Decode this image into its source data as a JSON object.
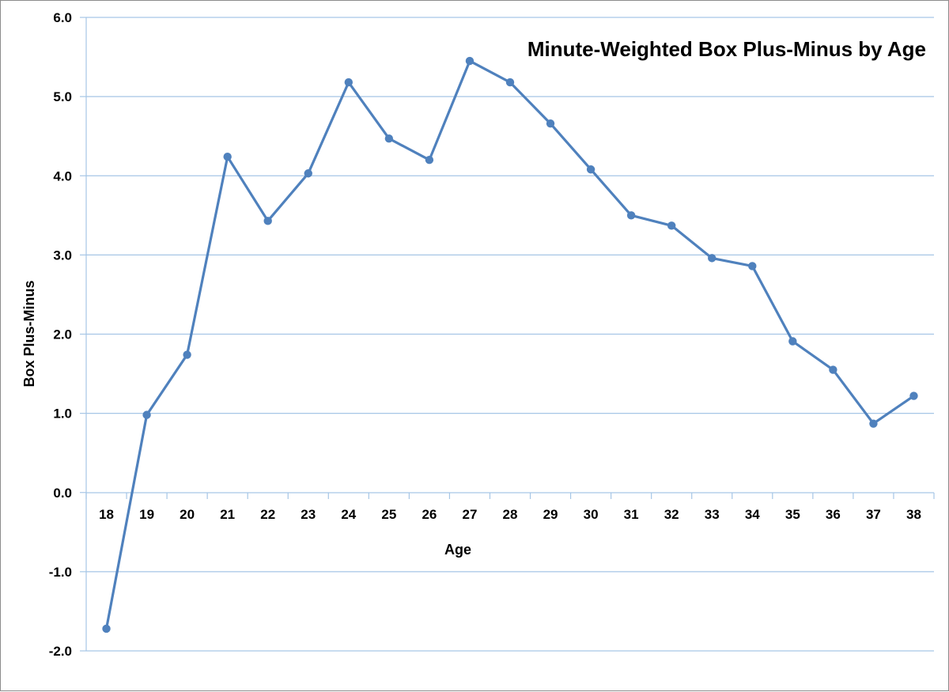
{
  "chart_data": {
    "type": "line",
    "title": "Minute-Weighted Box Plus-Minus by Age",
    "xlabel": "Age",
    "ylabel": "Box Plus-Minus",
    "ylim": [
      -2.0,
      6.0
    ],
    "yticks": [
      "-2.0",
      "-1.0",
      "0.0",
      "1.0",
      "2.0",
      "3.0",
      "4.0",
      "5.0",
      "6.0"
    ],
    "categories": [
      "18",
      "19",
      "20",
      "21",
      "22",
      "23",
      "24",
      "25",
      "26",
      "27",
      "28",
      "29",
      "30",
      "31",
      "32",
      "33",
      "34",
      "35",
      "36",
      "37",
      "38"
    ],
    "series": [
      {
        "values": [
          -1.72,
          0.98,
          1.74,
          4.24,
          3.43,
          4.03,
          5.18,
          4.47,
          4.2,
          5.45,
          5.18,
          4.66,
          4.08,
          3.5,
          3.37,
          2.96,
          2.86,
          1.91,
          1.55,
          0.87,
          1.22
        ],
        "color": "#4f81bd"
      }
    ],
    "grid": true,
    "gridColor": "#a6c6e6",
    "legend": "none"
  }
}
